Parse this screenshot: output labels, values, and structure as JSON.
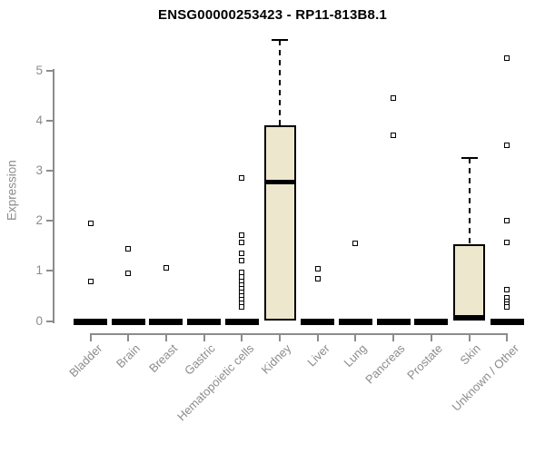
{
  "title": "ENSG00000253423 - RP11-813B8.1",
  "chart_data": {
    "type": "boxplot",
    "title": "ENSG00000253423 - RP11-813B8.1",
    "xlabel": "",
    "ylabel": "Expression",
    "ylim": [
      0,
      5.7
    ],
    "yticks": [
      0,
      1,
      2,
      3,
      4,
      5
    ],
    "grid": false,
    "legend": "none",
    "categories": [
      "Bladder",
      "Brain",
      "Breast",
      "Gastric",
      "Hematopoietic cells",
      "Kidney",
      "Liver",
      "Lung",
      "Pancreas",
      "Prostate",
      "Skin",
      "Unknown / Other"
    ],
    "boxes": [
      {
        "category": "Bladder",
        "q1": 0,
        "median": 0,
        "q3": 0,
        "whisker_low": 0,
        "whisker_high": 0,
        "outliers": [
          1.95,
          0.78
        ]
      },
      {
        "category": "Brain",
        "q1": 0,
        "median": 0,
        "q3": 0,
        "whisker_low": 0,
        "whisker_high": 0,
        "outliers": [
          1.45,
          0.95
        ]
      },
      {
        "category": "Breast",
        "q1": 0,
        "median": 0,
        "q3": 0,
        "whisker_low": 0,
        "whisker_high": 0,
        "outliers": [
          1.06
        ]
      },
      {
        "category": "Gastric",
        "q1": 0,
        "median": 0,
        "q3": 0,
        "whisker_low": 0,
        "whisker_high": 0,
        "outliers": []
      },
      {
        "category": "Hematopoietic cells",
        "q1": 0,
        "median": 0,
        "q3": 0,
        "whisker_low": 0,
        "whisker_high": 0,
        "outliers": [
          2.86,
          1.71,
          1.56,
          1.35,
          1.2,
          0.97,
          0.88,
          0.79,
          0.71,
          0.64,
          0.57,
          0.5,
          0.42,
          0.35,
          0.29
        ]
      },
      {
        "category": "Kidney",
        "q1": 0,
        "median": 2.79,
        "q3": 3.9,
        "whisker_low": 0,
        "whisker_high": 5.62,
        "outliers": []
      },
      {
        "category": "Liver",
        "q1": 0,
        "median": 0,
        "q3": 0,
        "whisker_low": 0,
        "whisker_high": 0,
        "outliers": [
          1.04,
          0.85
        ]
      },
      {
        "category": "Lung",
        "q1": 0,
        "median": 0,
        "q3": 0,
        "whisker_low": 0,
        "whisker_high": 0,
        "outliers": [
          1.55
        ]
      },
      {
        "category": "Pancreas",
        "q1": 0,
        "median": 0,
        "q3": 0,
        "whisker_low": 0,
        "whisker_high": 0,
        "outliers": [
          4.45,
          3.7
        ]
      },
      {
        "category": "Prostate",
        "q1": 0,
        "median": 0,
        "q3": 0,
        "whisker_low": 0,
        "whisker_high": 0,
        "outliers": []
      },
      {
        "category": "Skin",
        "q1": 0,
        "median": 0,
        "q3": 1.54,
        "whisker_low": 0,
        "whisker_high": 3.25,
        "outliers": []
      },
      {
        "category": "Unknown / Other",
        "q1": 0,
        "median": 0,
        "q3": 0,
        "whisker_low": 0,
        "whisker_high": 0,
        "outliers": [
          5.25,
          3.5,
          2.01,
          1.57,
          0.63,
          0.46,
          0.39,
          0.33,
          0.28
        ]
      }
    ],
    "colors": {
      "box_fill": "#EDE8CD",
      "box_border": "#000000",
      "median": "#000000",
      "whisker": "#000000",
      "outlier": "#000000",
      "axis": "#8c8c8c",
      "title": "#000000",
      "background": "#ffffff"
    }
  }
}
